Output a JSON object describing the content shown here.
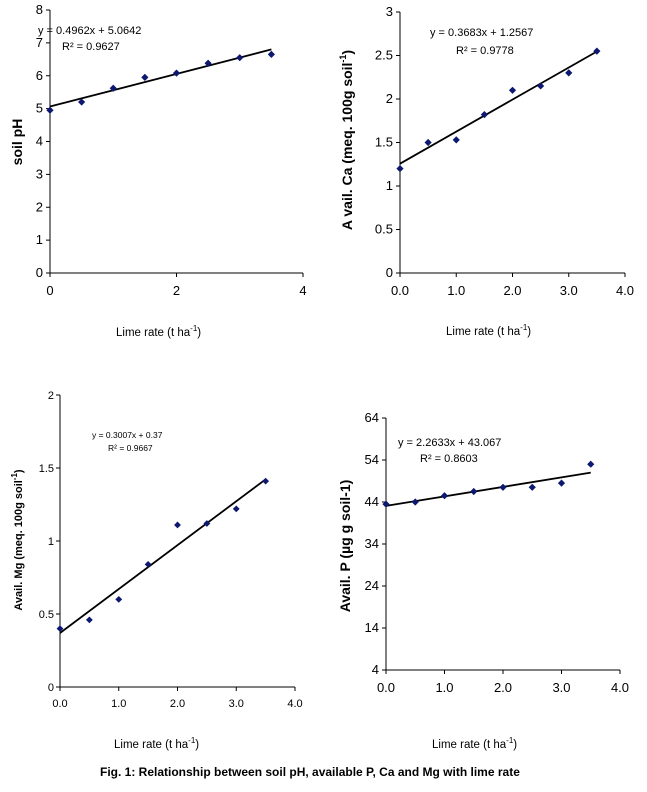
{
  "caption": "Fig. 1: Relationship between soil pH, available P, Ca and Mg with lime rate",
  "colors": {
    "marker": "#0d1870",
    "line": "#000000",
    "axis": "#000000"
  },
  "chart_data": [
    {
      "id": "ph",
      "type": "scatter",
      "x": [
        0,
        0.5,
        1,
        1.5,
        2,
        2.5,
        3,
        3.5
      ],
      "y": [
        4.95,
        5.2,
        5.62,
        5.95,
        6.08,
        6.38,
        6.55,
        6.65
      ],
      "xlim": [
        0,
        4
      ],
      "ylim": [
        0,
        8
      ],
      "xticks": [
        0,
        2,
        4
      ],
      "xtick_labels": [
        "0",
        "2",
        "4"
      ],
      "yticks": [
        0,
        1,
        2,
        3,
        4,
        5,
        6,
        7,
        8
      ],
      "ytick_labels": [
        "0",
        "1",
        "2",
        "3",
        "4",
        "5",
        "6",
        "7",
        "8"
      ],
      "xlabel": "Lime rate (t ha-1)",
      "ylabel": "soil pH",
      "trendline": {
        "slope": 0.4962,
        "intercept": 5.0642
      },
      "equation": "y = 0.4962x + 5.0642",
      "r2": "R² = 0.9627",
      "grid": false
    },
    {
      "id": "ca",
      "type": "scatter",
      "x": [
        0,
        0.5,
        1,
        1.5,
        2,
        2.5,
        3,
        3.5
      ],
      "y": [
        1.2,
        1.5,
        1.53,
        1.82,
        2.1,
        2.15,
        2.3,
        2.55
      ],
      "xlim": [
        0,
        4
      ],
      "ylim": [
        0,
        3
      ],
      "xticks": [
        0,
        1,
        2,
        3,
        4
      ],
      "xtick_labels": [
        "0.0",
        "1.0",
        "2.0",
        "3.0",
        "4.0"
      ],
      "yticks": [
        0,
        0.5,
        1,
        1.5,
        2,
        2.5,
        3
      ],
      "ytick_labels": [
        "0",
        "0.5",
        "1",
        "1.5",
        "2",
        "2.5",
        "3"
      ],
      "xlabel": "Lime rate (t ha-1)",
      "ylabel": "A vail. Ca (meq. 100g soil-1)",
      "trendline": {
        "slope": 0.3683,
        "intercept": 1.2567
      },
      "equation": "y = 0.3683x + 1.2567",
      "r2": "R² = 0.9778",
      "grid": false
    },
    {
      "id": "mg",
      "type": "scatter",
      "x": [
        0,
        0.5,
        1,
        1.5,
        2,
        2.5,
        3,
        3.5
      ],
      "y": [
        0.4,
        0.46,
        0.6,
        0.84,
        1.11,
        1.12,
        1.22,
        1.41
      ],
      "xlim": [
        0,
        4
      ],
      "ylim": [
        0,
        2
      ],
      "xticks": [
        0,
        1,
        2,
        3,
        4
      ],
      "xtick_labels": [
        "0.0",
        "1.0",
        "2.0",
        "3.0",
        "4.0"
      ],
      "yticks": [
        0,
        0.5,
        1,
        1.5,
        2
      ],
      "ytick_labels": [
        "0",
        "0.5",
        "1",
        "1.5",
        "2"
      ],
      "xlabel": "Lime rate (t ha-1)",
      "ylabel": "Avail. Mg (meq. 100g soil-1)",
      "trendline": {
        "slope": 0.3007,
        "intercept": 0.37
      },
      "equation": "y = 0.3007x + 0.37",
      "r2": "R² = 0.9667",
      "grid": false
    },
    {
      "id": "p",
      "type": "scatter",
      "x": [
        0,
        0.5,
        1,
        1.5,
        2,
        2.5,
        3,
        3.5
      ],
      "y": [
        43.5,
        44,
        45.5,
        46.5,
        47.5,
        47.5,
        48.5,
        53
      ],
      "xlim": [
        0,
        4
      ],
      "ylim": [
        4,
        64
      ],
      "xticks": [
        0,
        1,
        2,
        3,
        4
      ],
      "xtick_labels": [
        "0.0",
        "1.0",
        "2.0",
        "3.0",
        "4.0"
      ],
      "yticks": [
        4,
        14,
        24,
        34,
        44,
        54,
        64
      ],
      "ytick_labels": [
        "4",
        "14",
        "24",
        "34",
        "44",
        "54",
        "64"
      ],
      "xlabel": "Lime rate (t ha-1)",
      "ylabel": "Avail. P (µg g soil-1)",
      "trendline": {
        "slope": 2.2633,
        "intercept": 43.067
      },
      "equation": "y = 2.2633x + 43.067",
      "r2": "R² = 0.8603",
      "grid": false
    }
  ]
}
